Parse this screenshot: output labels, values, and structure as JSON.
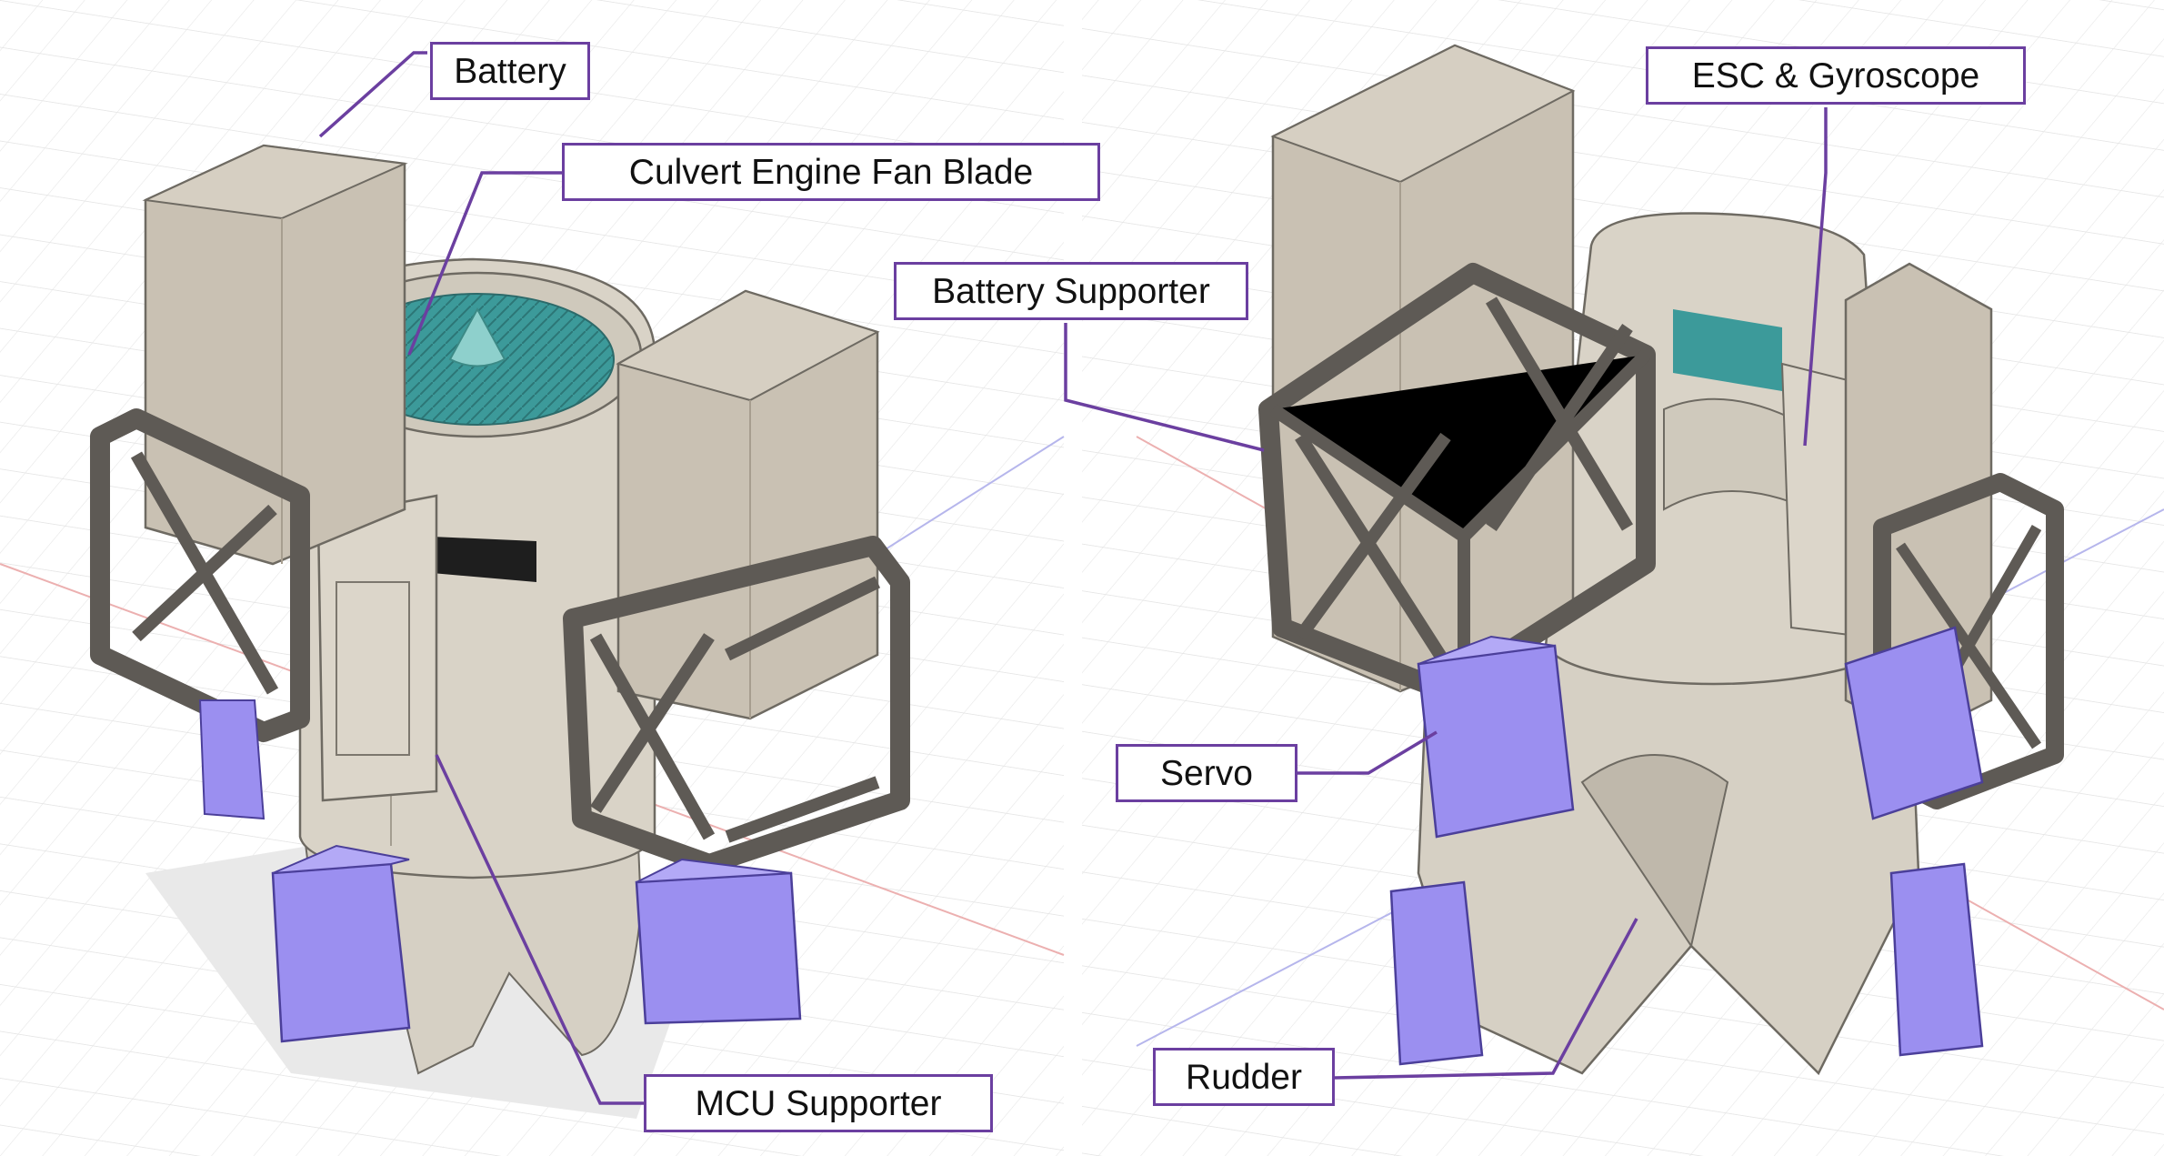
{
  "colors": {
    "leader": "#6b3fa0",
    "box_border": "#6b3fa0",
    "housing": "#d9d3c7",
    "housing_shade": "#bfb8ab",
    "battery": "#c9c1b3",
    "battery_shade": "#a79e8f",
    "frame": "#5e5a55",
    "frame_dark": "#45423e",
    "servo": "#9b8ff0",
    "servo_shade": "#7c6fd6",
    "fan": "#3c9a9a",
    "hub": "#8ed0cc",
    "grid": "#e4e4e4",
    "axis_red": "#e8a0a0",
    "axis_blue": "#a8a8e8"
  },
  "labels": {
    "battery": "Battery",
    "fan_blade": "Culvert Engine Fan Blade",
    "battery_supporter": "Battery Supporter",
    "esc_gyro": "ESC & Gyroscope",
    "servo": "Servo",
    "rudder": "Rudder",
    "mcu_supporter": "MCU Supporter"
  }
}
